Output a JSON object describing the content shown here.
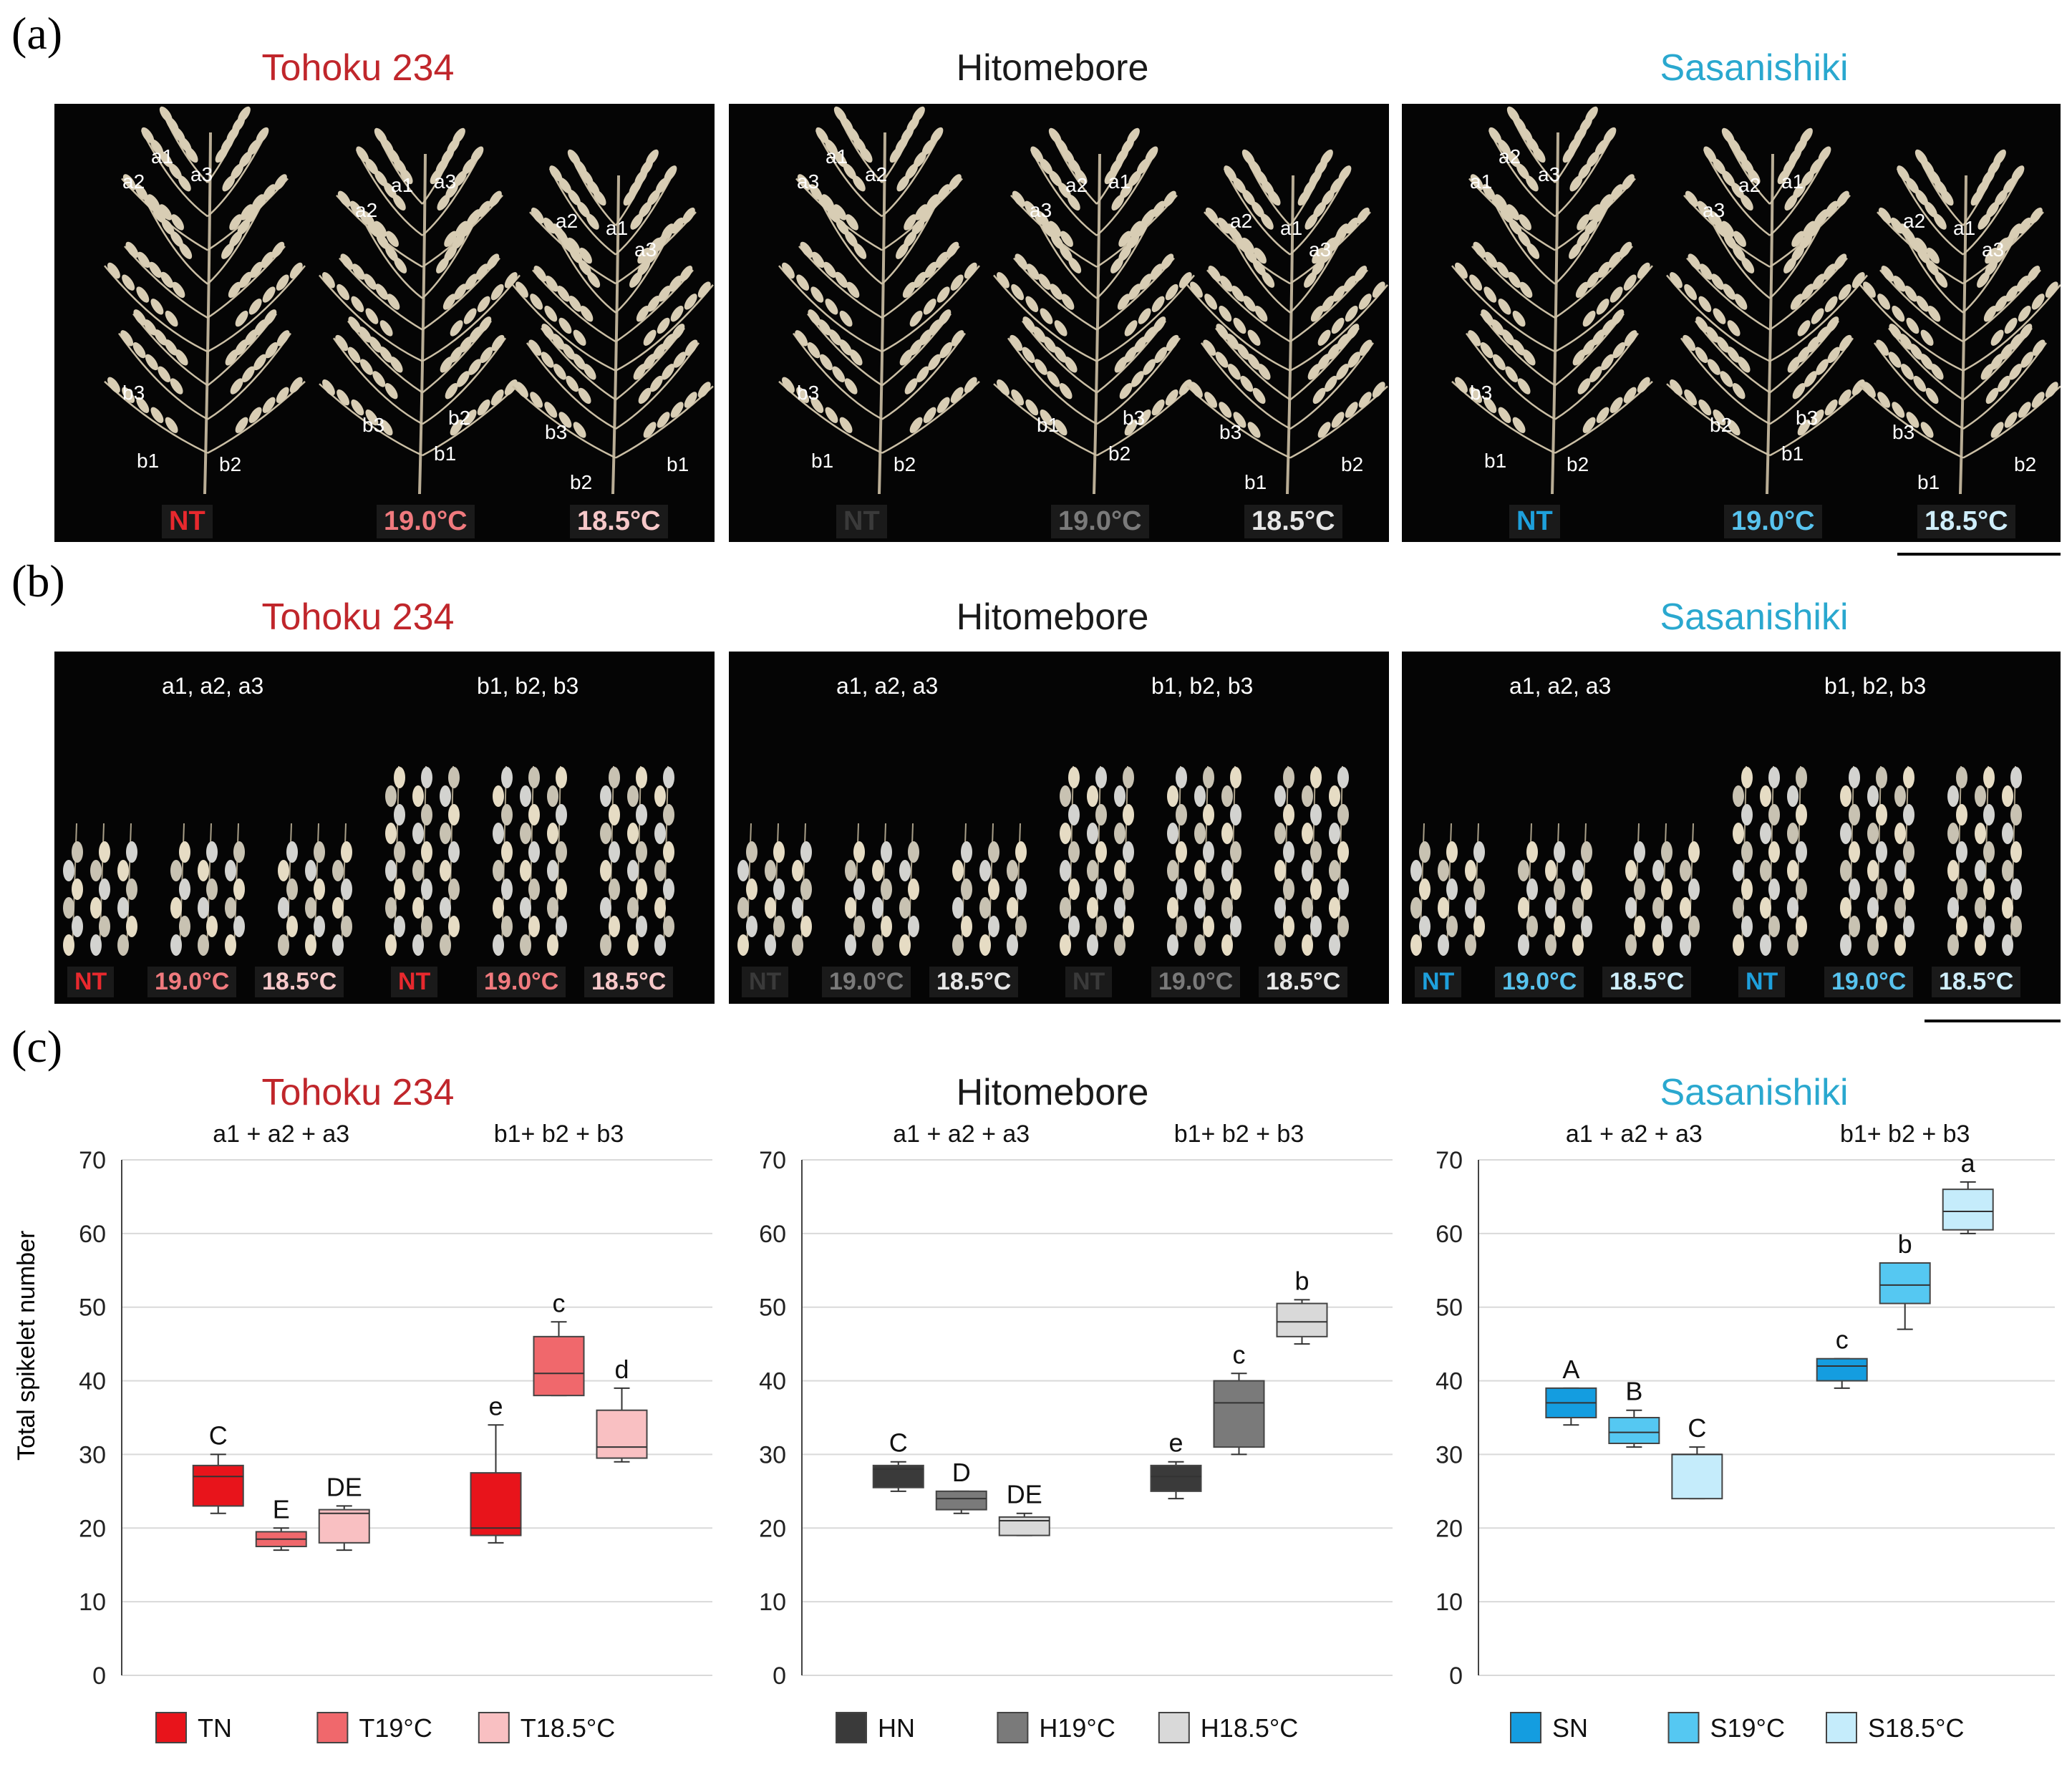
{
  "panels": {
    "a": {
      "letter": "(a)"
    },
    "b": {
      "letter": "(b)"
    },
    "c": {
      "letter": "(c)"
    }
  },
  "cultivars": [
    {
      "name": "Tohoku 234",
      "color": "#c0262b"
    },
    {
      "name": "Hitomebore",
      "color": "#1a1a1a"
    },
    {
      "name": "Sasanishiki",
      "color": "#2aa8cf"
    }
  ],
  "panel_a": {
    "photos": [
      {
        "temps": [
          "NT",
          "19.0°C",
          "18.5°C"
        ],
        "temp_colors": [
          "#e8292e",
          "#f07a7e",
          "#f7c8c9"
        ],
        "panicles": [
          {
            "labels": [
              "a1",
              "a2",
              "a3",
              "b3",
              "b1",
              "b2"
            ]
          },
          {
            "labels": [
              "a1",
              "a3",
              "a2",
              "b2",
              "b3",
              "b1"
            ]
          },
          {
            "labels": [
              "a2",
              "a1",
              "a3",
              "b3",
              "b2",
              "b1"
            ]
          }
        ]
      },
      {
        "temps": [
          "NT",
          "19.0°C",
          "18.5°C"
        ],
        "temp_colors": [
          "#3a3a3a",
          "#7a7a7a",
          "#e6e6e6"
        ],
        "panicles": [
          {
            "labels": [
              "a1",
              "a3",
              "a2",
              "b3",
              "b1",
              "b2"
            ]
          },
          {
            "labels": [
              "a2",
              "a1",
              "a3",
              "b3",
              "b1",
              "b2"
            ]
          },
          {
            "labels": [
              "a2",
              "a1",
              "a3",
              "b3",
              "b1",
              "b2"
            ]
          }
        ]
      },
      {
        "temps": [
          "NT",
          "19.0°C",
          "18.5°C"
        ],
        "temp_colors": [
          "#1ea0dc",
          "#58c3ee",
          "#cfeefb"
        ],
        "panicles": [
          {
            "labels": [
              "a2",
              "a1",
              "a3",
              "b3",
              "b1",
              "b2"
            ]
          },
          {
            "labels": [
              "a2",
              "a1",
              "a3",
              "b3",
              "b2",
              "b1"
            ]
          },
          {
            "labels": [
              "a2",
              "a1",
              "a3",
              "b3",
              "b1",
              "b2"
            ]
          }
        ]
      }
    ]
  },
  "panel_b": {
    "group_labels": [
      "a1, a2, a3",
      "b1, b2, b3"
    ],
    "temps": [
      "NT",
      "19.0°C",
      "18.5°C",
      "NT",
      "19.0°C",
      "18.5°C"
    ]
  },
  "chart_data": [
    {
      "type": "box",
      "title": "Tohoku 234",
      "ylabel": "Total spikelet number",
      "ylim": [
        0,
        70
      ],
      "yticks": [
        0,
        10,
        20,
        30,
        40,
        50,
        60,
        70
      ],
      "group_labels": [
        "a1 + a2 + a3",
        "b1+ b2 + b3"
      ],
      "legend": [
        "TN",
        "T19°C",
        "T18.5°C"
      ],
      "colors": [
        "#e8141b",
        "#f0686c",
        "#f9c0c2"
      ],
      "boxes": [
        {
          "group": 0,
          "series": 0,
          "min": 22,
          "q1": 23,
          "median": 27,
          "q3": 28.5,
          "max": 30,
          "letter": "C"
        },
        {
          "group": 0,
          "series": 1,
          "min": 17,
          "q1": 17.5,
          "median": 18.5,
          "q3": 19.5,
          "max": 20,
          "letter": "E"
        },
        {
          "group": 0,
          "series": 2,
          "min": 17,
          "q1": 18,
          "median": 22,
          "q3": 22.5,
          "max": 23,
          "letter": "DE"
        },
        {
          "group": 1,
          "series": 0,
          "min": 18,
          "q1": 19,
          "median": 20,
          "q3": 27.5,
          "max": 34,
          "letter": "e"
        },
        {
          "group": 1,
          "series": 1,
          "min": 38,
          "q1": 38,
          "median": 41,
          "q3": 46,
          "max": 48,
          "letter": "c"
        },
        {
          "group": 1,
          "series": 2,
          "min": 29,
          "q1": 29.5,
          "median": 31,
          "q3": 36,
          "max": 39,
          "letter": "d"
        }
      ]
    },
    {
      "type": "box",
      "title": "Hitomebore",
      "ylim": [
        0,
        70
      ],
      "yticks": [
        0,
        10,
        20,
        30,
        40,
        50,
        60,
        70
      ],
      "group_labels": [
        "a1 + a2 + a3",
        "b1+ b2 + b3"
      ],
      "legend": [
        "HN",
        "H19°C",
        "H18.5°C"
      ],
      "colors": [
        "#3a3a3a",
        "#7a7a7a",
        "#d9d9d9"
      ],
      "boxes": [
        {
          "group": 0,
          "series": 0,
          "min": 25,
          "q1": 25.5,
          "median": 28,
          "q3": 28.5,
          "max": 29,
          "letter": "C"
        },
        {
          "group": 0,
          "series": 1,
          "min": 22,
          "q1": 22.5,
          "median": 24,
          "q3": 25,
          "max": 25,
          "letter": "D"
        },
        {
          "group": 0,
          "series": 2,
          "min": 19,
          "q1": 19,
          "median": 21,
          "q3": 21.5,
          "max": 22,
          "letter": "DE"
        },
        {
          "group": 1,
          "series": 0,
          "min": 24,
          "q1": 25,
          "median": 27,
          "q3": 28.5,
          "max": 29,
          "letter": "e"
        },
        {
          "group": 1,
          "series": 1,
          "min": 30,
          "q1": 31,
          "median": 37,
          "q3": 40,
          "max": 41,
          "letter": "c"
        },
        {
          "group": 1,
          "series": 2,
          "min": 45,
          "q1": 46,
          "median": 48,
          "q3": 50.5,
          "max": 51,
          "letter": "b"
        }
      ]
    },
    {
      "type": "box",
      "title": "Sasanishiki",
      "ylim": [
        0,
        70
      ],
      "yticks": [
        0,
        10,
        20,
        30,
        40,
        50,
        60,
        70
      ],
      "group_labels": [
        "a1 + a2 + a3",
        "b1+ b2 + b3"
      ],
      "legend": [
        "SN",
        "S19°C",
        "S18.5°C"
      ],
      "colors": [
        "#149de0",
        "#55c8f2",
        "#c5ecfb"
      ],
      "boxes": [
        {
          "group": 0,
          "series": 0,
          "min": 34,
          "q1": 35,
          "median": 37,
          "q3": 39,
          "max": 39,
          "letter": "A"
        },
        {
          "group": 0,
          "series": 1,
          "min": 31,
          "q1": 31.5,
          "median": 33,
          "q3": 35,
          "max": 36,
          "letter": "B"
        },
        {
          "group": 0,
          "series": 2,
          "min": 24,
          "q1": 24,
          "median": 30,
          "q3": 30,
          "max": 31,
          "letter": "C"
        },
        {
          "group": 1,
          "series": 0,
          "min": 39,
          "q1": 40,
          "median": 42,
          "q3": 43,
          "max": 43,
          "letter": "c"
        },
        {
          "group": 1,
          "series": 1,
          "min": 47,
          "q1": 50.5,
          "median": 53,
          "q3": 56,
          "max": 56,
          "letter": "b"
        },
        {
          "group": 1,
          "series": 2,
          "min": 60,
          "q1": 60.5,
          "median": 63,
          "q3": 66,
          "max": 67,
          "letter": "a"
        }
      ]
    }
  ]
}
